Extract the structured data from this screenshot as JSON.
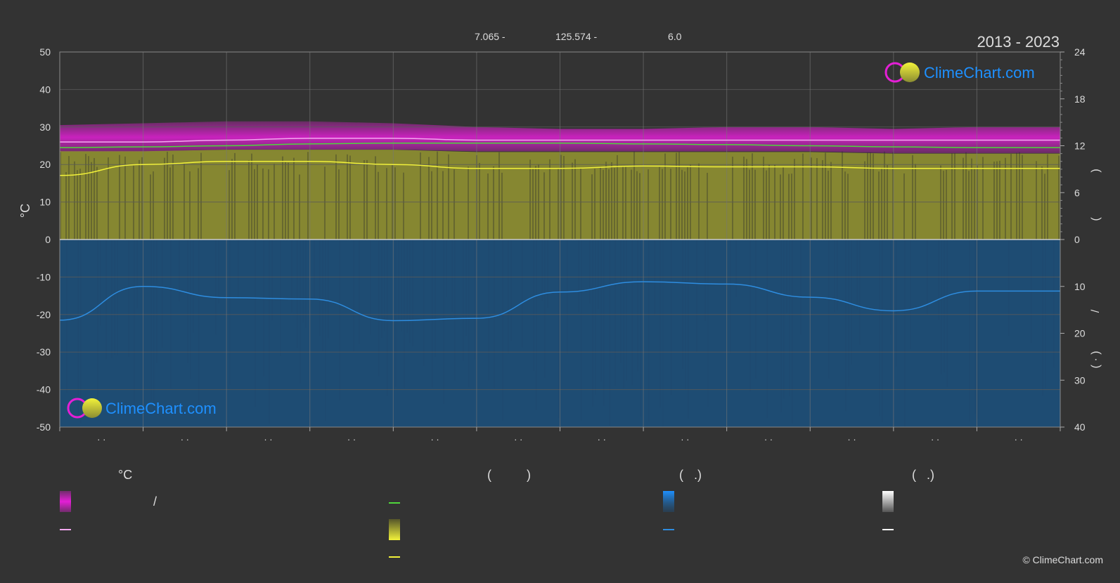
{
  "header": {
    "coords": [
      "7.065 -",
      "125.574 -",
      "6.0"
    ],
    "period": "2013 - 2023"
  },
  "watermark": {
    "text": "ClimeChart.com"
  },
  "copyright": "© ClimeChart.com",
  "colors": {
    "background": "#333333",
    "grid": "#5a5a5a",
    "temp_band": "#e41fd6",
    "temp_line": "#f3a8f0",
    "dew_line": "#4fd63c",
    "sun_band": "#8b8c32",
    "sun_line": "#f2f23a",
    "rain_band": "#1c4f7a",
    "rain_line": "#2e8de0",
    "brand_blue": "#1e90ff"
  },
  "chart_data": {
    "type": "area",
    "axes": {
      "left": {
        "label": "°C",
        "ticks": [
          50,
          40,
          30,
          20,
          10,
          0,
          -10,
          -20,
          -30,
          -40,
          -50
        ],
        "range": [
          -50,
          50
        ]
      },
      "right_upper": {
        "ticks": [
          24,
          18,
          12,
          6,
          0
        ],
        "range": [
          0,
          24
        ]
      },
      "right_lower": {
        "ticks": [
          10,
          20,
          30,
          40
        ],
        "range": [
          0,
          40
        ]
      },
      "right_labels": [
        ")",
        "(",
        "/",
        "( · )"
      ],
      "month_labels": [
        "· ·",
        "· ·",
        "· ·",
        "· ·",
        "· ·",
        "· ·",
        "· ·",
        "· ·",
        "· ·",
        "· ·",
        "· ·",
        "· ·"
      ]
    },
    "grid": true,
    "x": [
      0,
      1,
      2,
      3,
      4,
      5,
      6,
      7,
      8,
      9,
      10,
      11,
      12
    ],
    "series": [
      {
        "key": "temp_max_band",
        "values": [
          30.5,
          31,
          31.5,
          31.5,
          31,
          30,
          29.5,
          29.5,
          30,
          30,
          29.5,
          30,
          30
        ]
      },
      {
        "key": "temp_min_band",
        "values": [
          23.5,
          23.5,
          24,
          24,
          24,
          23.5,
          23.5,
          23.5,
          23.5,
          23.5,
          23,
          23,
          23
        ]
      },
      {
        "key": "temp_mean",
        "values": [
          26,
          26,
          26.5,
          27,
          27,
          26.5,
          26.5,
          26.5,
          26.5,
          26.5,
          26.5,
          26.5,
          26.5
        ]
      },
      {
        "key": "dew_point",
        "values": [
          24.5,
          24.7,
          25,
          25.5,
          25.7,
          25.7,
          25.7,
          25.5,
          25.3,
          25,
          24.7,
          24.5,
          24.5
        ]
      },
      {
        "key": "sun_band_hours",
        "values": [
          11.3,
          11.3,
          11.5,
          11.5,
          11.5,
          11.2,
          11.2,
          11.2,
          11.2,
          11.2,
          11,
          11,
          11
        ]
      },
      {
        "key": "sunshine_hours",
        "values": [
          8.2,
          9.6,
          10,
          10,
          9.6,
          9.1,
          9.1,
          9.4,
          9.3,
          9.3,
          9.1,
          9.1,
          9.1
        ]
      },
      {
        "key": "rain_band_mm",
        "values": [
          40,
          40,
          40,
          40,
          40,
          40,
          40,
          40,
          40,
          40,
          40,
          40,
          40
        ]
      },
      {
        "key": "precipitation_mm",
        "values": [
          17.2,
          10,
          12.4,
          12.7,
          17.3,
          16.8,
          11.2,
          9,
          9.5,
          12.3,
          15.2,
          11,
          11
        ]
      }
    ]
  },
  "legend": {
    "columns": [
      {
        "heading": "°C",
        "entries": [
          {
            "swatch": "gradient-magenta",
            "label": "/"
          },
          {
            "swatch": "line-pink",
            "label": ""
          }
        ]
      },
      {
        "heading": "(          )",
        "entries": [
          {
            "swatch": "line-green",
            "label": ""
          },
          {
            "swatch": "gradient-olive",
            "label": ""
          },
          {
            "swatch": "line-yellow",
            "label": ""
          }
        ]
      },
      {
        "heading": "(   .)",
        "entries": [
          {
            "swatch": "gradient-blue",
            "label": ""
          },
          {
            "swatch": "line-blue",
            "label": ""
          }
        ]
      },
      {
        "heading": "(   .)",
        "entries": [
          {
            "swatch": "gradient-white",
            "label": ""
          },
          {
            "swatch": "line-white",
            "label": ""
          }
        ]
      }
    ]
  }
}
